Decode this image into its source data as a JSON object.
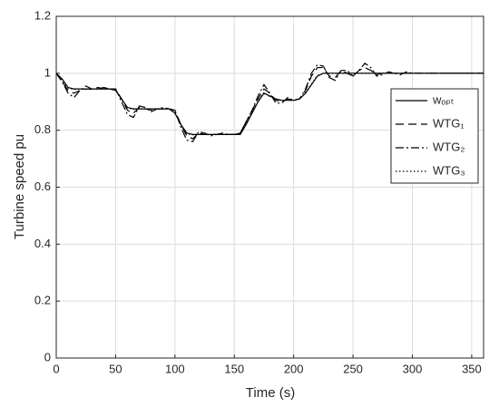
{
  "chart_data": {
    "type": "line",
    "x_label": "Time (s)",
    "y_label": "Turbine speed pu",
    "xlim": [
      0,
      360
    ],
    "ylim": [
      0,
      1.2
    ],
    "xticks": [
      0,
      50,
      100,
      150,
      200,
      250,
      300,
      350
    ],
    "yticks": [
      0,
      0.2,
      0.4,
      0.6,
      0.8,
      1,
      1.2
    ],
    "grid": true,
    "legend": "upper right",
    "x": [
      0,
      5,
      10,
      15,
      20,
      25,
      30,
      35,
      40,
      45,
      50,
      55,
      60,
      65,
      70,
      75,
      80,
      85,
      90,
      95,
      100,
      105,
      110,
      115,
      120,
      125,
      130,
      135,
      140,
      145,
      150,
      155,
      160,
      165,
      170,
      175,
      180,
      185,
      190,
      195,
      200,
      205,
      210,
      215,
      220,
      225,
      230,
      235,
      240,
      245,
      250,
      255,
      260,
      265,
      270,
      275,
      280,
      285,
      290,
      295,
      300,
      305,
      310,
      315,
      320,
      325,
      330,
      335,
      340,
      345,
      350,
      355,
      360
    ],
    "series": [
      {
        "name": "wₒₚₜ",
        "color": "#000000",
        "dash": "",
        "values": [
          1,
          0.98,
          0.95,
          0.945,
          0.945,
          0.945,
          0.945,
          0.945,
          0.945,
          0.945,
          0.94,
          0.91,
          0.88,
          0.875,
          0.875,
          0.875,
          0.875,
          0.875,
          0.875,
          0.875,
          0.86,
          0.82,
          0.79,
          0.785,
          0.785,
          0.785,
          0.785,
          0.785,
          0.785,
          0.785,
          0.785,
          0.785,
          0.82,
          0.86,
          0.9,
          0.93,
          0.92,
          0.91,
          0.905,
          0.905,
          0.905,
          0.91,
          0.93,
          0.96,
          0.99,
          1,
          1,
          1,
          1,
          1,
          1,
          1,
          1,
          1,
          1,
          1,
          1,
          1,
          1,
          1,
          1,
          1,
          1,
          1,
          1,
          1,
          1,
          1,
          1,
          1,
          1,
          1,
          1
        ]
      },
      {
        "name": "WTG₁",
        "color": "#000000",
        "dash": "9 5",
        "values": [
          1,
          0.97,
          0.94,
          0.93,
          0.94,
          0.945,
          0.945,
          0.95,
          0.945,
          0.945,
          0.945,
          0.91,
          0.87,
          0.86,
          0.88,
          0.875,
          0.87,
          0.875,
          0.875,
          0.875,
          0.87,
          0.82,
          0.78,
          0.77,
          0.79,
          0.785,
          0.785,
          0.785,
          0.785,
          0.785,
          0.785,
          0.79,
          0.83,
          0.87,
          0.91,
          0.945,
          0.93,
          0.905,
          0.9,
          0.91,
          0.905,
          0.91,
          0.94,
          0.99,
          1.02,
          1.02,
          0.99,
          0.985,
          1.01,
          1,
          0.99,
          1.01,
          1.02,
          1.01,
          0.995,
          1,
          1,
          1,
          1,
          1,
          1,
          1,
          1,
          1,
          1,
          1,
          1,
          1,
          1,
          1,
          1,
          1,
          1
        ]
      },
      {
        "name": "WTG₂",
        "color": "#000000",
        "dash": "9 3 2 3",
        "values": [
          1,
          0.97,
          0.93,
          0.915,
          0.94,
          0.955,
          0.945,
          0.945,
          0.95,
          0.945,
          0.945,
          0.9,
          0.855,
          0.845,
          0.885,
          0.88,
          0.865,
          0.875,
          0.88,
          0.875,
          0.87,
          0.81,
          0.765,
          0.76,
          0.795,
          0.79,
          0.78,
          0.785,
          0.79,
          0.785,
          0.785,
          0.79,
          0.83,
          0.87,
          0.92,
          0.96,
          0.93,
          0.895,
          0.895,
          0.915,
          0.905,
          0.91,
          0.945,
          1,
          1.03,
          1.025,
          0.985,
          0.975,
          1.01,
          1.01,
          0.99,
          1.01,
          1.035,
          1.02,
          0.99,
          0.995,
          1.005,
          1,
          0.995,
          1.005,
          1,
          1,
          1,
          1,
          1,
          1,
          1,
          1,
          1,
          1,
          1,
          1,
          1
        ]
      },
      {
        "name": "WTG₃",
        "color": "#000000",
        "dash": "1.5 2.5",
        "values": [
          1,
          0.975,
          0.948,
          0.944,
          0.945,
          0.945,
          0.945,
          0.945,
          0.945,
          0.945,
          0.942,
          0.908,
          0.878,
          0.874,
          0.876,
          0.875,
          0.875,
          0.875,
          0.875,
          0.875,
          0.862,
          0.818,
          0.788,
          0.784,
          0.786,
          0.785,
          0.785,
          0.785,
          0.785,
          0.785,
          0.785,
          0.787,
          0.822,
          0.862,
          0.902,
          0.932,
          0.918,
          0.908,
          0.904,
          0.906,
          0.905,
          0.911,
          0.932,
          0.962,
          0.992,
          1,
          1,
          1,
          1,
          1,
          1,
          1,
          1,
          1,
          1,
          1,
          1,
          1,
          1,
          1,
          1,
          1,
          1,
          1,
          1,
          1,
          1,
          1,
          1,
          1,
          1,
          1,
          1
        ]
      }
    ]
  }
}
